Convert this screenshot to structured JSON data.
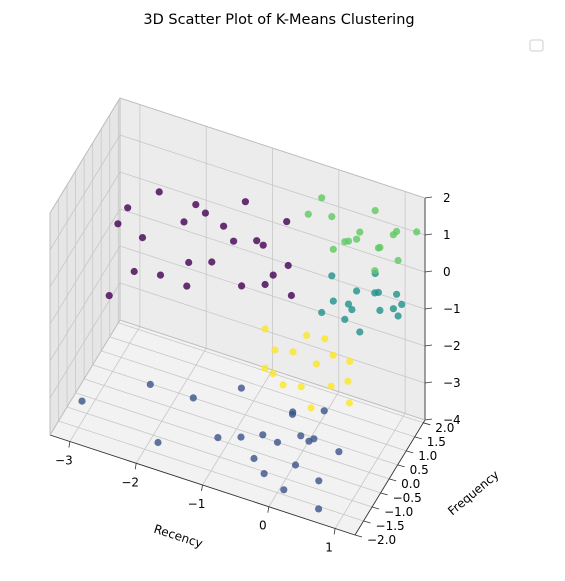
{
  "chart_data": {
    "type": "scatter",
    "title": "3D Scatter Plot of K-Means Clustering",
    "xlabel": "Recency",
    "ylabel": "Frequency",
    "zlabel": "",
    "xlim": [
      -3.3,
      1.3
    ],
    "ylim": [
      -2.0,
      2.1
    ],
    "zlim": [
      -4,
      2
    ],
    "x_ticks": [
      -3,
      -2,
      -1,
      0,
      1
    ],
    "y_ticks": [
      -2.0,
      -1.5,
      -1.0,
      -0.5,
      0.0,
      0.5,
      1.0,
      1.5,
      2.0
    ],
    "z_ticks": [
      -4,
      -3,
      -2,
      -1,
      0,
      1,
      2
    ],
    "x_tick_labels": [
      "−3",
      "−2",
      "−1",
      "0",
      "1"
    ],
    "y_tick_labels": [
      "−2.0",
      "−1.5",
      "−1.0",
      "−0.5",
      "0.0",
      "0.5",
      "1.0",
      "1.5",
      "2.0"
    ],
    "z_tick_labels": [
      "−4",
      "−3",
      "−2",
      "−1",
      "0",
      "1",
      "2"
    ],
    "grid": true,
    "legend": {
      "placement": "top-right",
      "entries": []
    },
    "colors": {
      "cluster_0": "#440154",
      "cluster_1": "#3b528b",
      "cluster_2": "#21918c",
      "cluster_3": "#5ec962",
      "cluster_4": "#fde725"
    },
    "series": [
      {
        "cluster": 0,
        "color": "#440154",
        "points": [
          [
            -0.3,
            0.3,
            0.6
          ],
          [
            -0.5,
            0.2,
            0.3
          ],
          [
            -0.8,
            0.4,
            0.9
          ],
          [
            -1.2,
            0.6,
            0.5
          ],
          [
            -1.6,
            0.5,
            1.1
          ],
          [
            -2.0,
            0.8,
            0.4
          ],
          [
            -2.4,
            0.9,
            0.9
          ],
          [
            -2.9,
            1.0,
            0.1
          ],
          [
            -3.1,
            1.2,
            -0.6
          ],
          [
            -2.6,
            0.7,
            -0.3
          ],
          [
            -1.8,
            0.3,
            -0.2
          ],
          [
            -1.4,
            0.1,
            0.2
          ],
          [
            -0.9,
            -0.1,
            0.0
          ],
          [
            -0.6,
            0.0,
            1.2
          ],
          [
            -1.1,
            0.9,
            1.4
          ],
          [
            -0.4,
            0.6,
            1.5
          ],
          [
            -2.2,
            0.2,
            -0.7
          ],
          [
            -1.7,
            -0.2,
            -0.4
          ],
          [
            -3.0,
            0.3,
            -1.8
          ],
          [
            -2.7,
            0.6,
            -1.2
          ],
          [
            -0.7,
            0.5,
            -0.3
          ],
          [
            -1.3,
            0.4,
            1.0
          ],
          [
            -0.2,
            0.1,
            0.0
          ],
          [
            -1.9,
            1.1,
            0.7
          ]
        ]
      },
      {
        "cluster": 1,
        "color": "#3b528b",
        "points": [
          [
            0.0,
            -0.6,
            -2.5
          ],
          [
            0.2,
            -0.9,
            -2.8
          ],
          [
            -0.1,
            -1.1,
            -3.0
          ],
          [
            0.4,
            -1.2,
            -2.6
          ],
          [
            -0.4,
            -0.8,
            -3.2
          ],
          [
            0.6,
            -1.4,
            -3.4
          ],
          [
            0.3,
            -1.6,
            -3.0
          ],
          [
            -0.2,
            -1.5,
            -3.6
          ],
          [
            0.1,
            -1.0,
            -2.2
          ],
          [
            0.5,
            -0.7,
            -2.1
          ],
          [
            -0.6,
            -1.3,
            -3.0
          ],
          [
            -1.0,
            -1.1,
            -3.4
          ],
          [
            -1.5,
            -0.6,
            -3.0
          ],
          [
            -2.2,
            -0.4,
            -3.2
          ],
          [
            -3.1,
            -0.9,
            -3.8
          ],
          [
            -1.8,
            -1.5,
            -3.7
          ],
          [
            0.7,
            -1.8,
            -3.8
          ],
          [
            0.2,
            -1.9,
            -3.5
          ],
          [
            -0.8,
            -0.5,
            -2.4
          ],
          [
            0.8,
            -1.0,
            -2.8
          ],
          [
            -0.3,
            -1.7,
            -3.1
          ],
          [
            0.5,
            -1.3,
            -2.4
          ]
        ]
      },
      {
        "cluster": 2,
        "color": "#21918c",
        "points": [
          [
            0.2,
            1.0,
            -0.6
          ],
          [
            0.5,
            1.2,
            -0.3
          ],
          [
            0.8,
            1.4,
            -0.8
          ],
          [
            1.0,
            1.6,
            -0.4
          ],
          [
            0.3,
            1.5,
            -1.0
          ],
          [
            0.6,
            1.0,
            -1.2
          ],
          [
            0.9,
            1.8,
            -1.0
          ],
          [
            0.1,
            1.3,
            -0.2
          ],
          [
            0.7,
            1.7,
            -0.6
          ],
          [
            0.4,
            0.9,
            -0.9
          ],
          [
            1.1,
            1.3,
            -0.7
          ],
          [
            0.0,
            1.1,
            -1.1
          ],
          [
            0.6,
            1.9,
            -0.3
          ],
          [
            0.8,
            1.1,
            -0.1
          ],
          [
            0.3,
            1.7,
            -1.3
          ],
          [
            1.0,
            1.9,
            -0.9
          ]
        ]
      },
      {
        "cluster": 3,
        "color": "#5ec962",
        "points": [
          [
            0.2,
            1.0,
            0.8
          ],
          [
            0.5,
            1.2,
            1.1
          ],
          [
            0.8,
            1.4,
            0.9
          ],
          [
            1.0,
            1.6,
            1.3
          ],
          [
            0.3,
            1.5,
            0.7
          ],
          [
            0.6,
            1.0,
            1.5
          ],
          [
            0.9,
            1.8,
            1.0
          ],
          [
            0.1,
            1.3,
            1.4
          ],
          [
            0.7,
            1.7,
            0.6
          ],
          [
            0.4,
            0.9,
            1.2
          ],
          [
            1.1,
            1.3,
            0.8
          ],
          [
            -0.1,
            0.7,
            1.8
          ],
          [
            0.6,
            1.9,
            1.4
          ],
          [
            0.8,
            1.1,
            0.5
          ],
          [
            0.0,
            1.1,
            2.0
          ],
          [
            1.2,
            2.0,
            1.1
          ]
        ]
      },
      {
        "cluster": 4,
        "color": "#fde725",
        "points": [
          [
            -0.2,
            0.2,
            -1.6
          ],
          [
            0.1,
            0.4,
            -1.9
          ],
          [
            0.4,
            0.1,
            -2.1
          ],
          [
            -0.5,
            0.3,
            -1.8
          ],
          [
            0.0,
            -0.1,
            -2.2
          ],
          [
            0.3,
            0.6,
            -1.7
          ],
          [
            -0.3,
            0.0,
            -2.4
          ],
          [
            0.6,
            0.3,
            -2.0
          ],
          [
            -0.7,
            0.5,
            -1.5
          ],
          [
            0.2,
            -0.3,
            -2.5
          ],
          [
            0.5,
            0.8,
            -1.9
          ],
          [
            -0.1,
            0.6,
            -1.4
          ],
          [
            -0.4,
            -0.2,
            -2.0
          ],
          [
            0.7,
            0.0,
            -2.3
          ],
          [
            0.1,
            0.9,
            -1.6
          ],
          [
            -0.6,
            0.1,
            -2.2
          ]
        ]
      }
    ]
  }
}
